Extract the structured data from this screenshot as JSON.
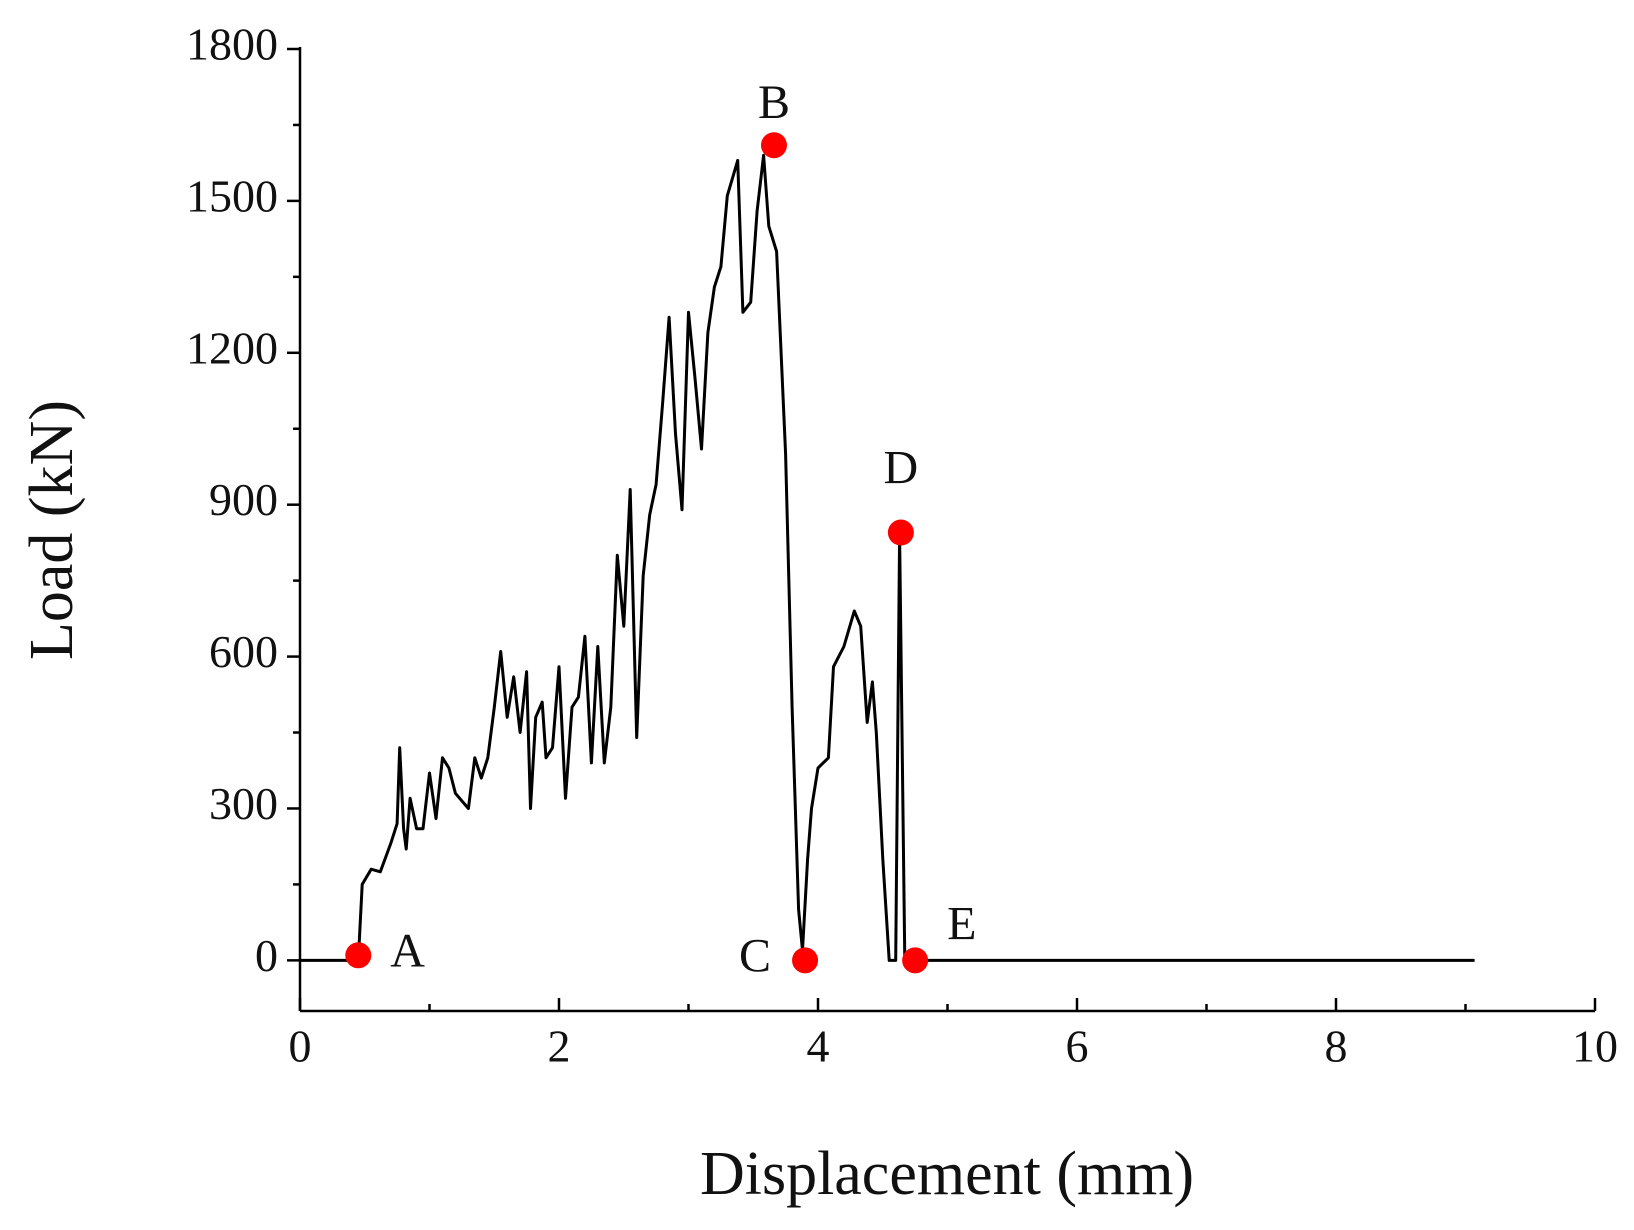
{
  "chart_data": {
    "type": "line",
    "x_label": "Displacement (mm)",
    "y_label": "Load (kN)",
    "xlim": [
      0,
      10
    ],
    "ylim": [
      -100,
      1800
    ],
    "xticks": [
      0,
      2,
      4,
      6,
      8,
      10
    ],
    "yticks": [
      0,
      300,
      600,
      900,
      1200,
      1500,
      1800
    ],
    "xminorticks": [
      1,
      3,
      5,
      7,
      9
    ],
    "yminorticks": [
      150,
      450,
      750,
      1050,
      1350,
      1650
    ],
    "series": [
      {
        "color": "#000000",
        "x": [
          0,
          0.45,
          0.48,
          0.55,
          0.62,
          0.7,
          0.75,
          0.77,
          0.8,
          0.82,
          0.85,
          0.9,
          0.95,
          1.0,
          1.05,
          1.1,
          1.15,
          1.2,
          1.3,
          1.35,
          1.4,
          1.45,
          1.5,
          1.55,
          1.6,
          1.65,
          1.7,
          1.75,
          1.78,
          1.82,
          1.87,
          1.9,
          1.95,
          2.0,
          2.05,
          2.1,
          2.15,
          2.2,
          2.25,
          2.3,
          2.35,
          2.4,
          2.45,
          2.5,
          2.55,
          2.6,
          2.65,
          2.7,
          2.75,
          2.8,
          2.85,
          2.9,
          2.95,
          3.0,
          3.05,
          3.1,
          3.15,
          3.2,
          3.25,
          3.3,
          3.38,
          3.42,
          3.48,
          3.53,
          3.58,
          3.62,
          3.68,
          3.75,
          3.8,
          3.85,
          3.88,
          3.92,
          3.95,
          4.0,
          4.08,
          4.12,
          4.2,
          4.28,
          4.33,
          4.38,
          4.42,
          4.45,
          4.5,
          4.55,
          4.6,
          4.63,
          4.67,
          4.72,
          9.07
        ],
        "values": [
          0,
          0,
          150,
          180,
          175,
          230,
          270,
          420,
          260,
          220,
          320,
          260,
          260,
          370,
          280,
          400,
          380,
          330,
          300,
          400,
          360,
          400,
          500,
          610,
          480,
          560,
          450,
          570,
          300,
          480,
          510,
          400,
          420,
          580,
          320,
          500,
          520,
          640,
          390,
          620,
          390,
          500,
          800,
          660,
          930,
          440,
          760,
          880,
          940,
          1100,
          1270,
          1040,
          890,
          1280,
          1150,
          1010,
          1240,
          1330,
          1370,
          1510,
          1580,
          1280,
          1300,
          1480,
          1590,
          1450,
          1400,
          1000,
          500,
          100,
          20,
          200,
          300,
          380,
          400,
          580,
          620,
          690,
          660,
          470,
          550,
          450,
          200,
          0,
          0,
          840,
          0,
          0,
          0
        ]
      }
    ],
    "points": {
      "color": "#ff0000",
      "labels": [
        "A",
        "B",
        "C",
        "D",
        "E"
      ],
      "x": [
        0.45,
        3.66,
        3.9,
        4.64,
        4.75
      ],
      "values": [
        10,
        1610,
        0,
        845,
        0
      ]
    }
  }
}
